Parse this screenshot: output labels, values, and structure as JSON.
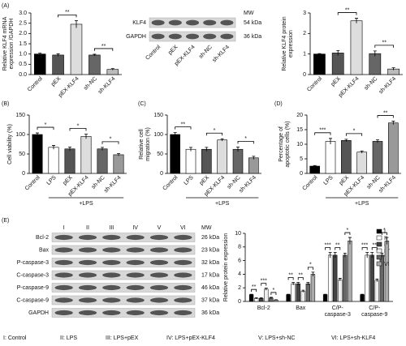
{
  "panel_labels": [
    "(A)",
    "(B)",
    "(C)",
    "(D)",
    "(E)"
  ],
  "chart_data": [
    {
      "type": "bar",
      "ylabel": [
        "Relative KLF4 mRNA",
        "expression /GAPDH"
      ],
      "categories": [
        "Control",
        "pEX",
        "pEX-KLF4",
        "sh-NC",
        "sh-KLF4"
      ],
      "values": [
        1.0,
        0.95,
        2.45,
        0.95,
        0.25
      ],
      "errors": [
        0.04,
        0.06,
        0.18,
        0.04,
        0.04
      ],
      "colors": [
        "#000000",
        "#555555",
        "#dddddd",
        "#666666",
        "#bbbbbb"
      ],
      "ylim": [
        0,
        3
      ],
      "yticks": [
        {
          "value": 0,
          "label": "0.0"
        },
        {
          "value": 0.5,
          "label": "0.5"
        },
        {
          "value": 1,
          "label": "1.0"
        },
        {
          "value": 1.5,
          "label": "1.5"
        },
        {
          "value": 2,
          "label": "2.0"
        },
        {
          "value": 2.5,
          "label": "2.5"
        },
        {
          "value": 3,
          "label": "3.0"
        }
      ],
      "annotations": [
        {
          "text": "**",
          "pair": [
            "pEX",
            "pEX-KLF4"
          ]
        },
        {
          "text": "**",
          "pair": [
            "sh-NC",
            "sh-KLF4"
          ]
        }
      ]
    },
    {
      "type": "bar",
      "ylabel": [
        "Relative KLF4 protein",
        "expression"
      ],
      "categories": [
        "Control",
        "pEX",
        "pEX-KLF4",
        "sh-NC",
        "sh-KLF4"
      ],
      "values": [
        1.0,
        1.05,
        2.62,
        1.02,
        0.27
      ],
      "errors": [
        0.02,
        0.12,
        0.12,
        0.13,
        0.06
      ],
      "colors": [
        "#000000",
        "#555555",
        "#dddddd",
        "#666666",
        "#bbbbbb"
      ],
      "ylim": [
        0,
        3
      ],
      "yticks": [
        0,
        1,
        2,
        3
      ],
      "annotations": [
        {
          "text": "**",
          "pair": [
            "pEX",
            "pEX-KLF4"
          ]
        },
        {
          "text": "**",
          "pair": [
            "sh-NC",
            "sh-KLF4"
          ]
        }
      ]
    },
    {
      "type": "bar",
      "ylabel": [
        "Cell viability (%)"
      ],
      "categories": [
        "Control",
        "LPS",
        "pEX",
        "pEX-KLF4",
        "sh-NC",
        "sh-KLF4"
      ],
      "values": [
        100,
        67,
        63,
        95,
        63,
        48
      ],
      "errors": [
        4,
        5,
        5,
        6,
        4,
        3
      ],
      "colors": [
        "#000000",
        "#ffffff",
        "#555555",
        "#dddddd",
        "#666666",
        "#999999"
      ],
      "ylim": [
        0,
        150
      ],
      "yticks": [
        0,
        50,
        100,
        150
      ],
      "annotations": [
        {
          "text": "*",
          "pair": [
            "Control",
            "LPS"
          ]
        },
        {
          "text": "*",
          "pair": [
            "pEX",
            "pEX-KLF4"
          ]
        },
        {
          "text": "*",
          "pair": [
            "sh-NC",
            "sh-KLF4"
          ]
        }
      ],
      "group_label": {
        "text": "+LPS",
        "span": [
          "LPS",
          "sh-KLF4"
        ]
      }
    },
    {
      "type": "bar",
      "ylabel": [
        "Relative cell",
        "migration (%)"
      ],
      "categories": [
        "Control",
        "LPS",
        "pEX",
        "pEX-KLF4",
        "sh-NC",
        "sh-KLF4"
      ],
      "values": [
        100,
        62,
        62,
        86,
        62,
        40
      ],
      "errors": [
        5,
        5,
        5,
        3,
        6,
        4
      ],
      "colors": [
        "#000000",
        "#ffffff",
        "#555555",
        "#dddddd",
        "#666666",
        "#999999"
      ],
      "ylim": [
        0,
        150
      ],
      "yticks": [
        0,
        50,
        100,
        150
      ],
      "annotations": [
        {
          "text": "**",
          "pair": [
            "Control",
            "LPS"
          ]
        },
        {
          "text": "*",
          "pair": [
            "pEX",
            "pEX-KLF4"
          ]
        },
        {
          "text": "*",
          "pair": [
            "sh-NC",
            "sh-KLF4"
          ]
        }
      ],
      "group_label": {
        "text": "+LPS",
        "span": [
          "LPS",
          "sh-KLF4"
        ]
      }
    },
    {
      "type": "bar",
      "ylabel": [
        "Percentage of",
        "apoptotic cells (%)"
      ],
      "categories": [
        "Control",
        "LPS",
        "pEX",
        "pEX-KLF4",
        "sh-NC",
        "sh-KLF4"
      ],
      "values": [
        2.5,
        11,
        11.3,
        7.3,
        11,
        17.3
      ],
      "errors": [
        0.2,
        1,
        0.4,
        0.4,
        0.5,
        0.6
      ],
      "colors": [
        "#000000",
        "#ffffff",
        "#555555",
        "#dddddd",
        "#666666",
        "#999999"
      ],
      "ylim": [
        0,
        20
      ],
      "yticks": [
        0,
        5,
        10,
        15,
        20
      ],
      "annotations": [
        {
          "text": "***",
          "pair": [
            "Control",
            "LPS"
          ]
        },
        {
          "text": "*",
          "pair": [
            "pEX",
            "pEX-KLF4"
          ]
        },
        {
          "text": "**",
          "pair": [
            "sh-NC",
            "sh-KLF4"
          ]
        }
      ],
      "group_label": {
        "text": "+LPS",
        "span": [
          "LPS",
          "sh-KLF4"
        ]
      }
    },
    {
      "type": "grouped_bar",
      "ylabel": [
        "Relative protein expression"
      ],
      "categories": [
        [
          "Bcl-2"
        ],
        [
          "Bax"
        ],
        [
          "C/P-",
          "caspase-3"
        ],
        [
          "C/P-",
          "caspase-9"
        ]
      ],
      "series": [
        {
          "name": "I",
          "color": "#000000",
          "values": [
            1.0,
            1.0,
            1.0,
            1.0
          ],
          "errors": [
            0.05,
            0.05,
            0.05,
            0.05
          ]
        },
        {
          "name": "II",
          "color": "#ffffff",
          "values": [
            0.45,
            2.6,
            6.8,
            6.8
          ],
          "errors": [
            0.1,
            0.2,
            0.4,
            0.4
          ]
        },
        {
          "name": "III",
          "color": "#444444",
          "values": [
            0.45,
            2.6,
            6.8,
            6.8
          ],
          "errors": [
            0.1,
            0.2,
            0.4,
            0.4
          ]
        },
        {
          "name": "IV",
          "color": "#eeeeee",
          "values": [
            1.8,
            1.5,
            3.2,
            3.1
          ],
          "errors": [
            0.15,
            0.15,
            0.2,
            0.2
          ]
        },
        {
          "name": "V",
          "color": "#666666",
          "values": [
            0.5,
            2.6,
            6.8,
            6.8
          ],
          "errors": [
            0.1,
            0.2,
            0.3,
            0.3
          ]
        },
        {
          "name": "VI",
          "color": "#aaaaaa",
          "values": [
            0.2,
            4.0,
            8.9,
            8.9
          ],
          "errors": [
            0.05,
            0.3,
            0.5,
            0.5
          ]
        }
      ],
      "ylim": [
        0,
        10
      ],
      "yticks": [
        0,
        2,
        4,
        6,
        8,
        10
      ],
      "annotations": [
        {
          "text": "**",
          "group": "Bcl-2",
          "pair": [
            "I",
            "II"
          ]
        },
        {
          "text": "***",
          "group": "Bcl-2",
          "pair": [
            "III",
            "IV"
          ]
        },
        {
          "text": "*",
          "group": "Bcl-2",
          "pair": [
            "V",
            "VI"
          ]
        },
        {
          "text": "**",
          "group": "Bax",
          "pair": [
            "I",
            "II"
          ]
        },
        {
          "text": "**",
          "group": "Bax",
          "pair": [
            "III",
            "IV"
          ]
        },
        {
          "text": "*",
          "group": "Bax",
          "pair": [
            "V",
            "VI"
          ]
        },
        {
          "text": "***",
          "group": "caspase-3",
          "pair": [
            "I",
            "II"
          ]
        },
        {
          "text": "**",
          "group": "caspase-3",
          "pair": [
            "III",
            "IV"
          ]
        },
        {
          "text": "*",
          "group": "caspase-3",
          "pair": [
            "V",
            "VI"
          ]
        },
        {
          "text": "***",
          "group": "caspase-9",
          "pair": [
            "I",
            "II"
          ]
        },
        {
          "text": "**",
          "group": "caspase-9",
          "pair": [
            "III",
            "IV"
          ]
        },
        {
          "text": "*",
          "group": "caspase-9",
          "pair": [
            "V",
            "VI"
          ]
        }
      ]
    }
  ],
  "blots": [
    {
      "mw_header": "MW",
      "lanes": [
        "Control",
        "pEX",
        "pEX-KLF4",
        "sh-NC",
        "sh-KLF4"
      ],
      "bands": [
        {
          "protein": "KLF4",
          "mw": "54 kDa"
        },
        {
          "protein": "GAPDH",
          "mw": "36 kDa"
        }
      ]
    },
    {
      "mw_header": "MW",
      "lanes": [
        "I",
        "II",
        "III",
        "IV",
        "V",
        "VI"
      ],
      "bands": [
        {
          "protein": "Bcl-2",
          "mw": "26 kDa"
        },
        {
          "protein": "Bax",
          "mw": "23 kDa"
        },
        {
          "protein": "P-caspase-3",
          "mw": "32 kDa"
        },
        {
          "protein": "C-caspase-3",
          "mw": "17 kDa"
        },
        {
          "protein": "P-caspase-9",
          "mw": "46 kDa"
        },
        {
          "protein": "C-caspase-9",
          "mw": "37 kDa"
        },
        {
          "protein": "GAPDH",
          "mw": "36 kDa"
        }
      ]
    }
  ],
  "footer": [
    "I: Control",
    "II: LPS",
    "III: LPS+pEX",
    "IV: LPS+pEX-KLF4",
    "V: LPS+sh-NC",
    "VI: LPS+sh-KLF4"
  ]
}
